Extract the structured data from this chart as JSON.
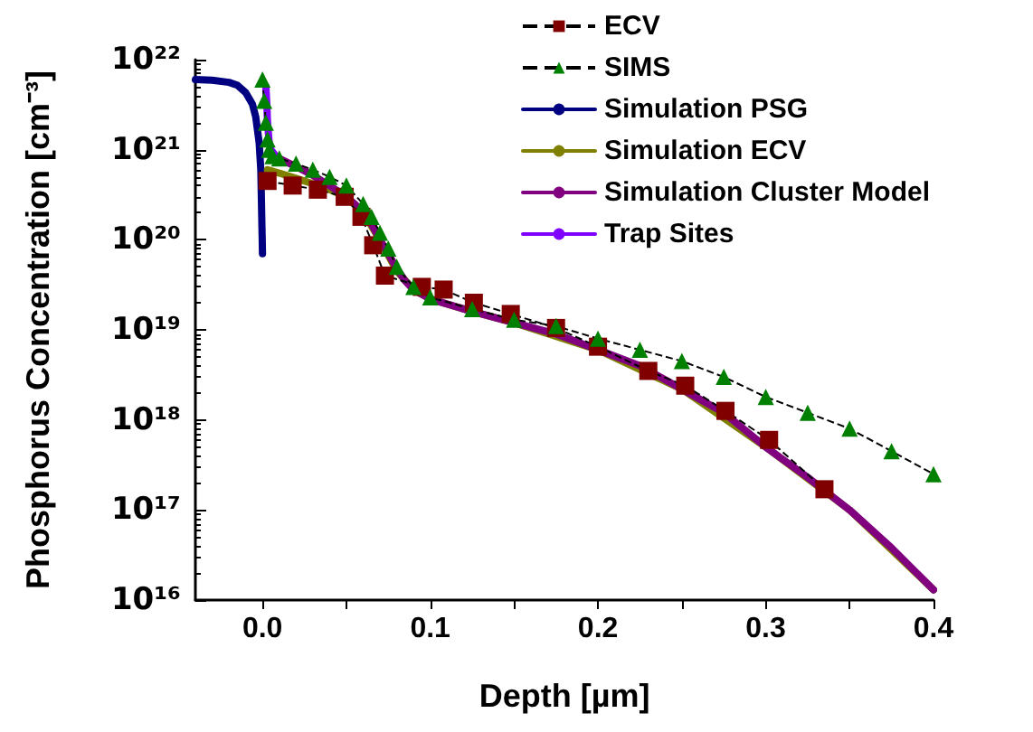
{
  "chart_data": {
    "type": "line",
    "xlabel": "Depth [µm]",
    "ylabel": "Phosphorus Concentration [cm⁻³]",
    "log": "y",
    "xlim": [
      -0.04,
      0.4
    ],
    "xticks": [
      {
        "value": 0,
        "label": "0.0"
      },
      {
        "value": 0.05,
        "label": null
      },
      {
        "value": 0.1,
        "label": "0.1"
      },
      {
        "value": 0.15,
        "label": null
      },
      {
        "value": 0.2,
        "label": "0.2"
      },
      {
        "value": 0.25,
        "label": null
      },
      {
        "value": 0.3,
        "label": "0.3"
      },
      {
        "value": 0.35,
        "label": null
      },
      {
        "value": 0.4,
        "label": "0.4"
      }
    ],
    "ylim": [
      1e+16,
      1e+22
    ],
    "yticks": [
      {
        "value": 1e+16,
        "label": "10¹⁶"
      },
      {
        "value": 1e+17,
        "label": "10¹⁷"
      },
      {
        "value": 1e+18,
        "label": "10¹⁸"
      },
      {
        "value": 1e+19,
        "label": "10¹⁹"
      },
      {
        "value": 1e+20,
        "label": "10²⁰"
      },
      {
        "value": 1e+21,
        "label": "10²¹"
      },
      {
        "value": 1e+22,
        "label": "10²²"
      }
    ],
    "grid": false,
    "legend": "top right",
    "series": [
      {
        "name": "ECV",
        "color": "#800000",
        "marker": "square",
        "line_style": "dashed",
        "x": [
          0.003,
          0.018,
          0.033,
          0.049,
          0.059,
          0.066,
          0.073,
          0.095,
          0.108,
          0.126,
          0.148,
          0.175,
          0.2,
          0.23,
          0.252,
          0.276,
          0.302,
          0.335
        ],
        "values": [
          4.5e+20,
          4e+20,
          3.6e+20,
          3e+20,
          1.8e+20,
          8.7e+19,
          4e+19,
          3e+19,
          2.8e+19,
          2e+19,
          1.5e+19,
          1.05e+19,
          6.5e+18,
          3.5e+18,
          2.4e+18,
          1.26e+18,
          6e+17,
          1.7e+17
        ]
      },
      {
        "name": "SIMS",
        "color": "#008000",
        "marker": "triangle",
        "line_style": "dashed",
        "x": [
          0.0,
          0.001,
          0.002,
          0.003,
          0.004,
          0.006,
          0.01,
          0.02,
          0.03,
          0.04,
          0.05,
          0.06,
          0.065,
          0.07,
          0.075,
          0.08,
          0.09,
          0.1,
          0.125,
          0.15,
          0.175,
          0.2,
          0.225,
          0.25,
          0.275,
          0.3,
          0.325,
          0.35,
          0.375,
          0.4
        ],
        "values": [
          6e+21,
          3.5e+21,
          2e+21,
          1.3e+21,
          1e+21,
          8.5e+20,
          8e+20,
          7e+20,
          6e+20,
          5e+20,
          4e+20,
          2.5e+20,
          1.8e+20,
          1.2e+20,
          8e+19,
          5e+19,
          3e+19,
          2.3e+19,
          1.7e+19,
          1.3e+19,
          1.1e+19,
          8e+18,
          6e+18,
          4.5e+18,
          3e+18,
          1.8e+18,
          1.2e+18,
          8e+17,
          4.5e+17,
          2.5e+17
        ]
      },
      {
        "name": "Simulation PSG",
        "color": "#000080",
        "marker": "none",
        "line_style": "solid",
        "x": [
          -0.04,
          -0.03,
          -0.02,
          -0.015,
          -0.01,
          -0.006,
          -0.004,
          -0.002,
          -0.001,
          0.0
        ],
        "values": [
          6e+21,
          5.9e+21,
          5.6e+21,
          5.2e+21,
          4.3e+21,
          3.2e+21,
          2.3e+21,
          1.2e+21,
          6e+20,
          7e+19
        ]
      },
      {
        "name": "Simulation ECV",
        "color": "#808000",
        "marker": "none",
        "line_style": "solid",
        "x": [
          0.003,
          0.01,
          0.02,
          0.03,
          0.04,
          0.05,
          0.06,
          0.07,
          0.08,
          0.09,
          0.1,
          0.125,
          0.15,
          0.2,
          0.25,
          0.3,
          0.35,
          0.4
        ],
        "values": [
          6e+20,
          5.5e+20,
          4.8e+20,
          4.2e+20,
          3.6e+20,
          3e+20,
          2e+20,
          1e+20,
          4.5e+19,
          2.8e+19,
          2.2e+19,
          1.6e+19,
          1.2e+19,
          6e+18,
          2.2e+18,
          5e+17,
          1e+17,
          1.3e+16
        ]
      },
      {
        "name": "Simulation Cluster Model",
        "color": "#800080",
        "marker": "none",
        "line_style": "solid",
        "x": [
          0.005,
          0.01,
          0.02,
          0.03,
          0.04,
          0.05,
          0.055,
          0.06,
          0.065,
          0.07,
          0.075,
          0.08,
          0.085,
          0.09,
          0.1,
          0.125,
          0.15,
          0.175,
          0.2,
          0.225,
          0.25,
          0.275,
          0.3,
          0.325,
          0.35,
          0.375,
          0.4
        ],
        "values": [
          9e+20,
          8e+20,
          6.5e+20,
          5.2e+20,
          4e+20,
          3e+20,
          2.5e+20,
          2e+20,
          1.5e+20,
          1e+20,
          7e+19,
          4.8e+19,
          3.5e+19,
          2.8e+19,
          2.2e+19,
          1.6e+19,
          1.2e+19,
          9e+18,
          6e+18,
          4e+18,
          2.2e+18,
          1.2e+18,
          5e+17,
          2.3e+17,
          1e+17,
          3.8e+16,
          1.3e+16
        ]
      },
      {
        "name": "Trap Sites",
        "color": "#8000ff",
        "marker": "none",
        "line_style": "solid",
        "x": [
          0.002,
          0.0025,
          0.003,
          0.004,
          0.005,
          0.007
        ],
        "values": [
          5e+21,
          3.5e+21,
          2e+21,
          1.2e+21,
          1e+21,
          9e+20
        ]
      }
    ]
  }
}
